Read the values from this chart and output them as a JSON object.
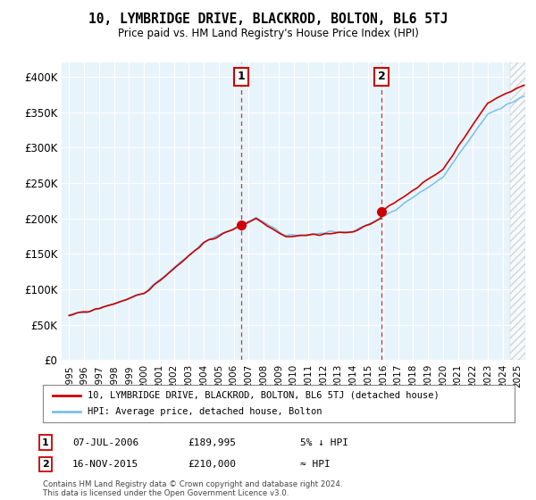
{
  "title": "10, LYMBRIDGE DRIVE, BLACKROD, BOLTON, BL6 5TJ",
  "subtitle": "Price paid vs. HM Land Registry's House Price Index (HPI)",
  "legend_line1": "10, LYMBRIDGE DRIVE, BLACKROD, BOLTON, BL6 5TJ (detached house)",
  "legend_line2": "HPI: Average price, detached house, Bolton",
  "annotation1_date": "07-JUL-2006",
  "annotation1_price": "£189,995",
  "annotation1_note": "5% ↓ HPI",
  "annotation2_date": "16-NOV-2015",
  "annotation2_price": "£210,000",
  "annotation2_note": "≈ HPI",
  "footer": "Contains HM Land Registry data © Crown copyright and database right 2024.\nThis data is licensed under the Open Government Licence v3.0.",
  "sale1_year": 2006.52,
  "sale1_value": 189995,
  "sale2_year": 2015.88,
  "sale2_value": 210000,
  "hpi_color": "#7bbfe8",
  "price_color": "#cc0000",
  "ylim_min": 0,
  "ylim_max": 420000,
  "yticks": [
    0,
    50000,
    100000,
    150000,
    200000,
    250000,
    300000,
    350000,
    400000
  ],
  "xlim_min": 1994.5,
  "xlim_max": 2025.5,
  "xticks": [
    1995,
    1996,
    1997,
    1998,
    1999,
    2000,
    2001,
    2002,
    2003,
    2004,
    2005,
    2006,
    2007,
    2008,
    2009,
    2010,
    2011,
    2012,
    2013,
    2014,
    2015,
    2016,
    2017,
    2018,
    2019,
    2020,
    2021,
    2022,
    2023,
    2024,
    2025
  ],
  "background_color": "#ffffff",
  "plot_bg_color": "#e8f4fc",
  "hatch_start": 2024.5
}
